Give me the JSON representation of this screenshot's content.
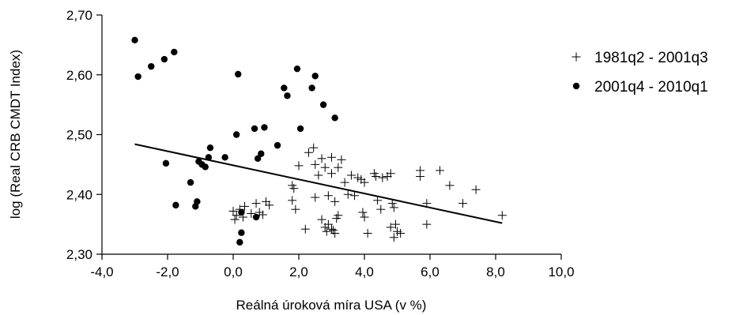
{
  "chart_data": {
    "type": "scatter",
    "xlabel": "Reálná úroková míra USA (v %)",
    "ylabel": "log (Real CRB CMDT Index)",
    "xlim": [
      -4.0,
      10.0
    ],
    "ylim": [
      2.3,
      2.7
    ],
    "x_ticks": [
      "-4,0",
      "-2,0",
      "0,0",
      "2,0",
      "4,0",
      "6,0",
      "8,0",
      "10,0"
    ],
    "y_ticks": [
      "2,30",
      "2,40",
      "2,50",
      "2,60",
      "2,70"
    ],
    "legend_position": "right",
    "series": [
      {
        "name": "1981q2 - 2001q3",
        "marker": "plus",
        "color": "#000000",
        "points": [
          [
            0.0,
            2.372
          ],
          [
            0.05,
            2.358
          ],
          [
            0.1,
            2.365
          ],
          [
            0.2,
            2.375
          ],
          [
            0.3,
            2.362
          ],
          [
            0.35,
            2.38
          ],
          [
            0.55,
            2.368
          ],
          [
            0.7,
            2.385
          ],
          [
            0.8,
            2.37
          ],
          [
            0.9,
            2.366
          ],
          [
            1.0,
            2.388
          ],
          [
            1.1,
            2.382
          ],
          [
            1.8,
            2.415
          ],
          [
            1.85,
            2.41
          ],
          [
            1.8,
            2.39
          ],
          [
            1.9,
            2.375
          ],
          [
            2.0,
            2.448
          ],
          [
            2.2,
            2.342
          ],
          [
            2.3,
            2.47
          ],
          [
            2.45,
            2.478
          ],
          [
            2.5,
            2.45
          ],
          [
            2.5,
            2.395
          ],
          [
            2.6,
            2.432
          ],
          [
            2.7,
            2.46
          ],
          [
            2.7,
            2.358
          ],
          [
            2.8,
            2.445
          ],
          [
            2.8,
            2.345
          ],
          [
            2.85,
            2.338
          ],
          [
            2.9,
            2.398
          ],
          [
            2.9,
            2.35
          ],
          [
            3.0,
            2.462
          ],
          [
            3.0,
            2.435
          ],
          [
            3.0,
            2.342
          ],
          [
            3.05,
            2.34
          ],
          [
            3.1,
            2.335
          ],
          [
            3.1,
            2.388
          ],
          [
            3.15,
            2.36
          ],
          [
            3.2,
            2.445
          ],
          [
            3.2,
            2.365
          ],
          [
            3.3,
            2.458
          ],
          [
            3.4,
            2.42
          ],
          [
            3.5,
            2.4
          ],
          [
            3.6,
            2.432
          ],
          [
            3.7,
            2.398
          ],
          [
            3.8,
            2.428
          ],
          [
            3.9,
            2.425
          ],
          [
            3.95,
            2.37
          ],
          [
            4.0,
            2.42
          ],
          [
            4.0,
            2.362
          ],
          [
            4.1,
            2.335
          ],
          [
            4.3,
            2.435
          ],
          [
            4.35,
            2.43
          ],
          [
            4.4,
            2.39
          ],
          [
            4.5,
            2.375
          ],
          [
            4.55,
            2.428
          ],
          [
            4.7,
            2.43
          ],
          [
            4.8,
            2.435
          ],
          [
            4.8,
            2.345
          ],
          [
            4.85,
            2.385
          ],
          [
            4.9,
            2.378
          ],
          [
            4.9,
            2.328
          ],
          [
            4.95,
            2.35
          ],
          [
            5.0,
            2.338
          ],
          [
            5.1,
            2.335
          ],
          [
            5.7,
            2.44
          ],
          [
            5.7,
            2.43
          ],
          [
            5.9,
            2.385
          ],
          [
            5.9,
            2.35
          ],
          [
            6.3,
            2.44
          ],
          [
            6.6,
            2.415
          ],
          [
            7.0,
            2.385
          ],
          [
            7.4,
            2.408
          ],
          [
            8.2,
            2.365
          ]
        ]
      },
      {
        "name": "2001q4 - 2010q1",
        "marker": "circle",
        "color": "#000000",
        "points": [
          [
            -3.0,
            2.658
          ],
          [
            -2.9,
            2.597
          ],
          [
            -2.5,
            2.614
          ],
          [
            -2.1,
            2.626
          ],
          [
            -1.8,
            2.638
          ],
          [
            -2.05,
            2.452
          ],
          [
            -1.75,
            2.382
          ],
          [
            -1.3,
            2.42
          ],
          [
            -1.15,
            2.38
          ],
          [
            -1.1,
            2.388
          ],
          [
            -1.05,
            2.455
          ],
          [
            -0.95,
            2.45
          ],
          [
            -0.85,
            2.446
          ],
          [
            -0.75,
            2.462
          ],
          [
            -0.7,
            2.478
          ],
          [
            -0.25,
            2.462
          ],
          [
            0.1,
            2.5
          ],
          [
            0.15,
            2.601
          ],
          [
            0.2,
            2.32
          ],
          [
            0.25,
            2.336
          ],
          [
            0.25,
            2.37
          ],
          [
            0.65,
            2.51
          ],
          [
            0.7,
            2.362
          ],
          [
            0.75,
            2.46
          ],
          [
            0.85,
            2.468
          ],
          [
            0.95,
            2.512
          ],
          [
            1.35,
            2.482
          ],
          [
            1.55,
            2.578
          ],
          [
            1.65,
            2.565
          ],
          [
            1.95,
            2.61
          ],
          [
            2.05,
            2.51
          ],
          [
            2.4,
            2.578
          ],
          [
            2.5,
            2.598
          ],
          [
            2.75,
            2.55
          ],
          [
            3.1,
            2.528
          ]
        ]
      }
    ],
    "trendline": {
      "type": "linear",
      "color": "#000000",
      "start": [
        -3.0,
        2.484
      ],
      "end": [
        8.2,
        2.352
      ]
    }
  }
}
